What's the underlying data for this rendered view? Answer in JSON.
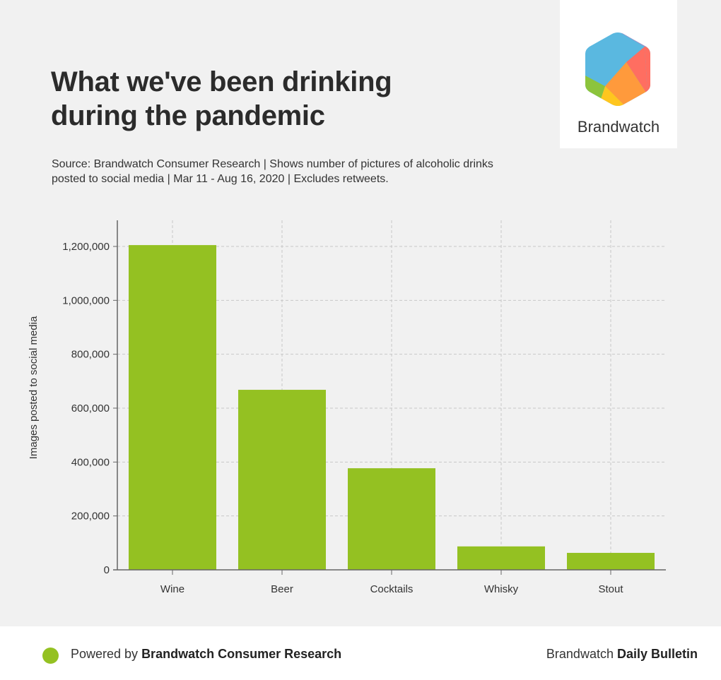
{
  "header": {
    "title_line1": "What we've been drinking",
    "title_line2": "during the pandemic",
    "subtitle": "Source: Brandwatch Consumer Research | Shows number of pictures of alcoholic drinks posted to social media | Mar 11 - Aug 16, 2020 | Excludes retweets."
  },
  "logo": {
    "text": "Brandwatch"
  },
  "footer": {
    "powered_prefix": "Powered by ",
    "powered_brand": "Brandwatch Consumer Research",
    "right_prefix": "Brandwatch ",
    "right_bold": "Daily Bulletin"
  },
  "colors": {
    "bar": "#94c122",
    "grid": "#c8c8c8",
    "axis": "#666666",
    "background": "#f1f1f1"
  },
  "chart_data": {
    "type": "bar",
    "categories": [
      "Wine",
      "Beer",
      "Cocktails",
      "Whisky",
      "Stout"
    ],
    "values": [
      1205000,
      668000,
      377000,
      87000,
      63000
    ],
    "ylabel": "Images posted to social media",
    "xlabel": "",
    "ylim": [
      0,
      1300000
    ],
    "yticks": [
      0,
      200000,
      400000,
      600000,
      800000,
      1000000,
      1200000
    ],
    "ytick_labels": [
      "0",
      "200,000",
      "400,000",
      "600,000",
      "800,000",
      "1,000,000",
      "1,200,000"
    ],
    "grid": true,
    "legend": "none"
  }
}
